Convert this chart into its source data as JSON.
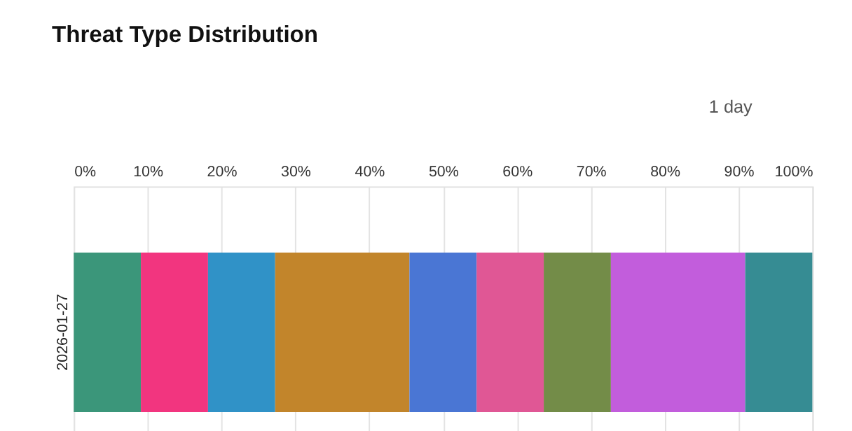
{
  "chart_data": {
    "type": "bar",
    "title": "Threat Type Distribution",
    "orientation": "horizontal",
    "stacked": true,
    "categories": [
      "2026-01-27"
    ],
    "series": [
      {
        "color": "#3b967a",
        "values": [
          9.09
        ]
      },
      {
        "color": "#f2357f",
        "values": [
          9.09
        ]
      },
      {
        "color": "#3092c7",
        "values": [
          9.09
        ]
      },
      {
        "color": "#c2852b",
        "values": [
          18.18
        ]
      },
      {
        "color": "#4a76d4",
        "values": [
          9.09
        ]
      },
      {
        "color": "#e05795",
        "values": [
          9.09
        ]
      },
      {
        "color": "#738c48",
        "values": [
          9.09
        ]
      },
      {
        "color": "#c25ddc",
        "values": [
          18.18
        ]
      },
      {
        "color": "#368c93",
        "values": [
          9.09
        ]
      }
    ],
    "xlim": [
      0,
      100
    ],
    "xticks": [
      {
        "value": 0,
        "label": "0%"
      },
      {
        "value": 10,
        "label": "10%"
      },
      {
        "value": 20,
        "label": "20%"
      },
      {
        "value": 30,
        "label": "30%"
      },
      {
        "value": 40,
        "label": "40%"
      },
      {
        "value": 50,
        "label": "50%"
      },
      {
        "value": 60,
        "label": "60%"
      },
      {
        "value": 70,
        "label": "70%"
      },
      {
        "value": 80,
        "label": "80%"
      },
      {
        "value": 90,
        "label": "90%"
      },
      {
        "value": 100,
        "label": "100%"
      }
    ],
    "grid": "x",
    "legend": false,
    "annotations": [
      "1 day"
    ]
  }
}
